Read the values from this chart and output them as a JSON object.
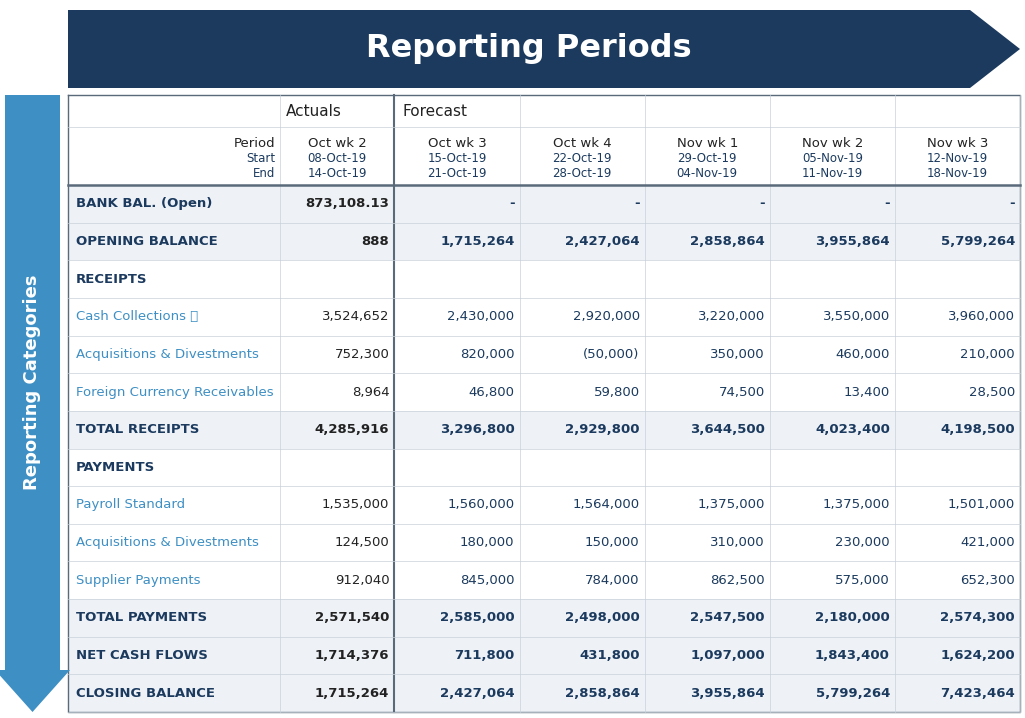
{
  "title": "Reporting Periods",
  "title_color": "#FFFFFF",
  "arrow_color": "#1b3a5e",
  "left_arrow_color": "#3d8fc4",
  "left_label": "Reporting Categories",
  "header_row2": [
    "Period",
    "Oct wk 2",
    "Oct wk 3",
    "Oct wk 4",
    "Nov wk 1",
    "Nov wk 2",
    "Nov wk 3"
  ],
  "header_start": [
    "",
    "08-Oct-19",
    "15-Oct-19",
    "22-Oct-19",
    "29-Oct-19",
    "05-Nov-19",
    "12-Nov-19"
  ],
  "header_end": [
    "",
    "14-Oct-19",
    "21-Oct-19",
    "28-Oct-19",
    "04-Nov-19",
    "11-Nov-19",
    "18-Nov-19"
  ],
  "rows": [
    {
      "label": "BANK BAL. (Open)",
      "bold": true,
      "values": [
        "873,108.13",
        "-",
        "-",
        "-",
        "-",
        "-"
      ],
      "section": false
    },
    {
      "label": "OPENING BALANCE",
      "bold": true,
      "values": [
        "888",
        "1,715,264",
        "2,427,064",
        "2,858,864",
        "3,955,864",
        "5,799,264"
      ],
      "section": false
    },
    {
      "label": "RECEIPTS",
      "bold": true,
      "values": [
        "",
        "",
        "",
        "",
        "",
        ""
      ],
      "section": true
    },
    {
      "label": "Cash Collections Ⓕ",
      "bold": false,
      "values": [
        "3,524,652",
        "2,430,000",
        "2,920,000",
        "3,220,000",
        "3,550,000",
        "3,960,000"
      ],
      "section": false
    },
    {
      "label": "Acquisitions & Divestments",
      "bold": false,
      "values": [
        "752,300",
        "820,000",
        "(50,000)",
        "350,000",
        "460,000",
        "210,000"
      ],
      "section": false
    },
    {
      "label": "Foreign Currency Receivables",
      "bold": false,
      "values": [
        "8,964",
        "46,800",
        "59,800",
        "74,500",
        "13,400",
        "28,500"
      ],
      "section": false
    },
    {
      "label": "TOTAL RECEIPTS",
      "bold": true,
      "values": [
        "4,285,916",
        "3,296,800",
        "2,929,800",
        "3,644,500",
        "4,023,400",
        "4,198,500"
      ],
      "section": false
    },
    {
      "label": "PAYMENTS",
      "bold": true,
      "values": [
        "",
        "",
        "",
        "",
        "",
        ""
      ],
      "section": true
    },
    {
      "label": "Payroll Standard",
      "bold": false,
      "values": [
        "1,535,000",
        "1,560,000",
        "1,564,000",
        "1,375,000",
        "1,375,000",
        "1,501,000"
      ],
      "section": false
    },
    {
      "label": "Acquisitions & Divestments",
      "bold": false,
      "values": [
        "124,500",
        "180,000",
        "150,000",
        "310,000",
        "230,000",
        "421,000"
      ],
      "section": false
    },
    {
      "label": "Supplier Payments",
      "bold": false,
      "values": [
        "912,040",
        "845,000",
        "784,000",
        "862,500",
        "575,000",
        "652,300"
      ],
      "section": false
    },
    {
      "label": "TOTAL PAYMENTS",
      "bold": true,
      "values": [
        "2,571,540",
        "2,585,000",
        "2,498,000",
        "2,547,500",
        "2,180,000",
        "2,574,300"
      ],
      "section": false
    },
    {
      "label": "NET CASH FLOWS",
      "bold": true,
      "values": [
        "1,714,376",
        "711,800",
        "431,800",
        "1,097,000",
        "1,843,400",
        "1,624,200"
      ],
      "section": false
    },
    {
      "label": "CLOSING BALANCE",
      "bold": true,
      "values": [
        "1,715,264",
        "2,427,064",
        "2,858,864",
        "3,955,864",
        "5,799,264",
        "7,423,464"
      ],
      "section": false
    }
  ],
  "dark_blue": "#1b3a5e",
  "mid_blue": "#3d8fc4",
  "text_dark": "#1b3a5e",
  "text_black": "#222222",
  "grid_color": "#c8d0d8",
  "thick_line_color": "#5a6a7a",
  "bg_color": "#ffffff",
  "bold_row_bg": "#eef2f7"
}
